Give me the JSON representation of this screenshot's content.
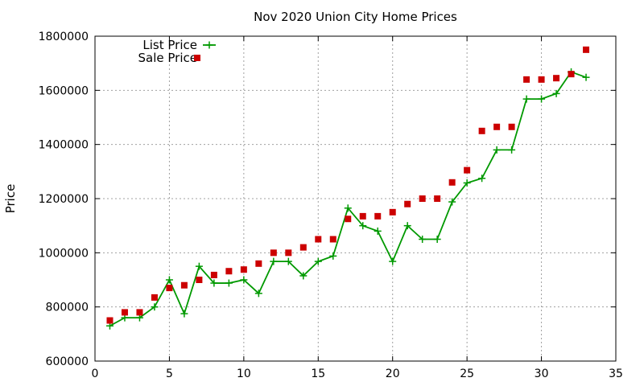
{
  "chart_data": {
    "type": "line",
    "title": "Nov 2020 Union City Home Prices",
    "xlabel": "",
    "ylabel": "Price",
    "xlim": [
      0,
      35
    ],
    "ylim": [
      600000,
      1800000
    ],
    "xticks": [
      0,
      5,
      10,
      15,
      20,
      25,
      30,
      35
    ],
    "yticks": [
      600000,
      800000,
      1000000,
      1200000,
      1400000,
      1600000,
      1800000
    ],
    "grid": true,
    "legend_position": "top-left",
    "series": [
      {
        "name": "List Price",
        "style": "line-with-plus-markers",
        "color": "#009900",
        "x": [
          1,
          2,
          3,
          4,
          5,
          6,
          7,
          8,
          9,
          10,
          11,
          12,
          13,
          14,
          15,
          16,
          17,
          18,
          19,
          20,
          21,
          22,
          23,
          24,
          25,
          26,
          27,
          28,
          29,
          30,
          31,
          32,
          33
        ],
        "y": [
          730000,
          760000,
          760000,
          800000,
          900000,
          775000,
          950000,
          888000,
          888000,
          900000,
          850000,
          968000,
          968000,
          915000,
          968000,
          988000,
          1165000,
          1100000,
          1080000,
          968000,
          1100000,
          1050000,
          1050000,
          1188000,
          1258000,
          1275000,
          1380000,
          1380000,
          1568000,
          1568000,
          1588000,
          1668000,
          1648000
        ]
      },
      {
        "name": "Sale Price",
        "style": "square-markers",
        "color": "#cc0000",
        "x": [
          1,
          2,
          3,
          4,
          5,
          6,
          7,
          8,
          9,
          10,
          11,
          12,
          13,
          14,
          15,
          16,
          17,
          18,
          19,
          20,
          21,
          22,
          23,
          24,
          25,
          26,
          27,
          28,
          29,
          30,
          31,
          32,
          33
        ],
        "y": [
          750000,
          780000,
          780000,
          835000,
          870000,
          880000,
          900000,
          918000,
          932000,
          938000,
          960000,
          1000000,
          1000000,
          1020000,
          1050000,
          1050000,
          1125000,
          1135000,
          1135000,
          1150000,
          1180000,
          1200000,
          1200000,
          1260000,
          1305000,
          1450000,
          1465000,
          1465000,
          1640000,
          1640000,
          1645000,
          1660000,
          1750000
        ]
      }
    ]
  }
}
